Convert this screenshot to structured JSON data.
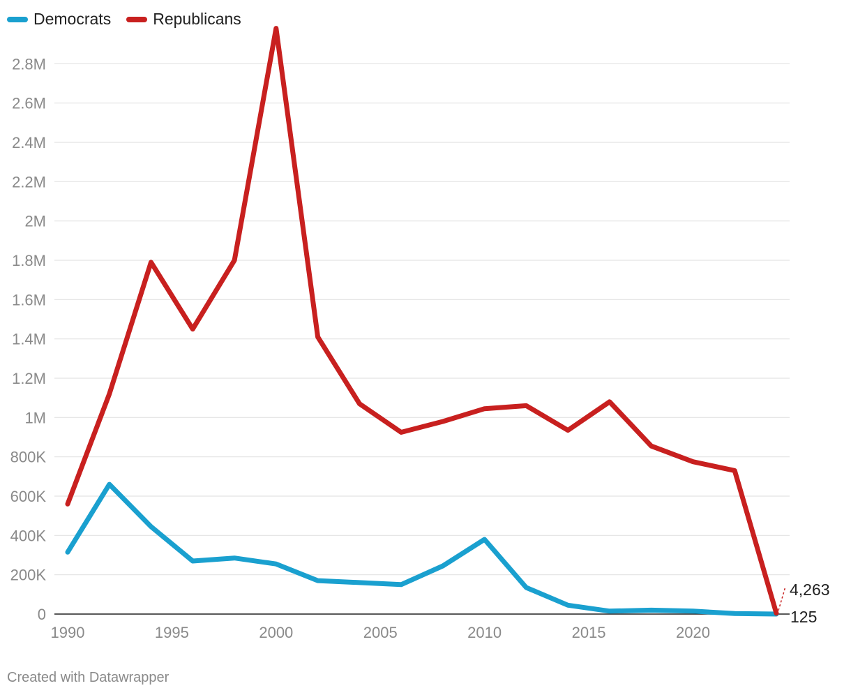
{
  "chart_data": {
    "type": "line",
    "title": "",
    "xlabel": "",
    "ylabel": "",
    "ylim": [
      0,
      3000000
    ],
    "xlim": [
      1990,
      2024
    ],
    "legend_position": "top-left",
    "grid": true,
    "y_ticks": [
      {
        "value": 0,
        "label": "0"
      },
      {
        "value": 200000,
        "label": "200K"
      },
      {
        "value": 400000,
        "label": "400K"
      },
      {
        "value": 600000,
        "label": "600K"
      },
      {
        "value": 800000,
        "label": "800K"
      },
      {
        "value": 1000000,
        "label": "1M"
      },
      {
        "value": 1200000,
        "label": "1.2M"
      },
      {
        "value": 1400000,
        "label": "1.4M"
      },
      {
        "value": 1600000,
        "label": "1.6M"
      },
      {
        "value": 1800000,
        "label": "1.8M"
      },
      {
        "value": 2000000,
        "label": "2M"
      },
      {
        "value": 2200000,
        "label": "2.2M"
      },
      {
        "value": 2400000,
        "label": "2.4M"
      },
      {
        "value": 2600000,
        "label": "2.6M"
      },
      {
        "value": 2800000,
        "label": "2.8M"
      }
    ],
    "x_ticks": [
      {
        "value": 1990,
        "label": "1990"
      },
      {
        "value": 1995,
        "label": "1995"
      },
      {
        "value": 2000,
        "label": "2000"
      },
      {
        "value": 2005,
        "label": "2005"
      },
      {
        "value": 2010,
        "label": "2010"
      },
      {
        "value": 2015,
        "label": "2015"
      },
      {
        "value": 2020,
        "label": "2020"
      }
    ],
    "x": [
      1990,
      1992,
      1994,
      1996,
      1998,
      2000,
      2002,
      2004,
      2006,
      2008,
      2010,
      2012,
      2014,
      2016,
      2018,
      2020,
      2022,
      2024
    ],
    "series": [
      {
        "name": "Democrats",
        "color": "#1aa0cf",
        "values": [
          315000,
          660000,
          445000,
          270000,
          285000,
          255000,
          170000,
          160000,
          150000,
          245000,
          380000,
          135000,
          45000,
          15000,
          20000,
          15000,
          3000,
          125
        ],
        "end_label": "125"
      },
      {
        "name": "Republicans",
        "color": "#c8201f",
        "values": [
          560000,
          1120000,
          1790000,
          1450000,
          1800000,
          2980000,
          1410000,
          1070000,
          925000,
          980000,
          1045000,
          1060000,
          935000,
          1080000,
          855000,
          775000,
          730000,
          4263
        ],
        "end_label": "4,263"
      }
    ]
  },
  "footer": {
    "credit": "Created with Datawrapper"
  }
}
